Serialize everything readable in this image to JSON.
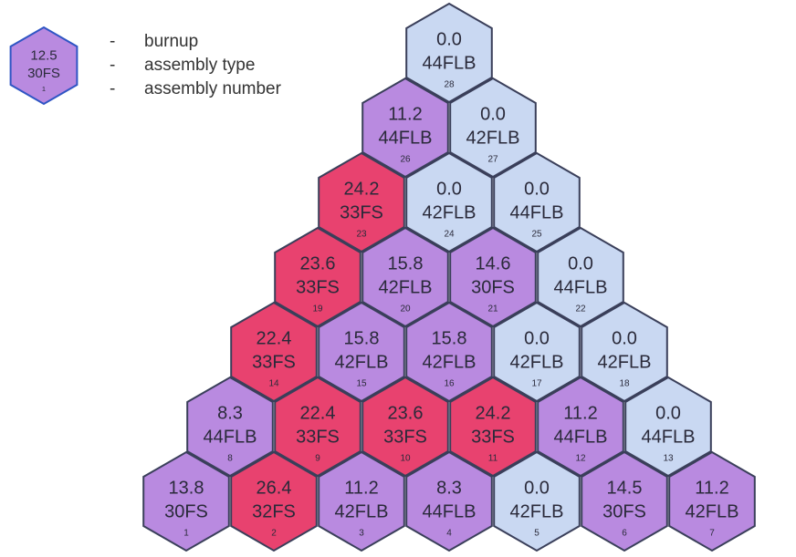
{
  "legend": {
    "burnup": "12.5",
    "type": "30FS",
    "number": 1,
    "color": "#b98ae0",
    "items": [
      {
        "dash": "-",
        "label": "burnup"
      },
      {
        "dash": "-",
        "label": "assembly type"
      },
      {
        "dash": "-",
        "label": "assembly number"
      }
    ]
  },
  "cells": [
    {
      "burnup": "13.8",
      "type": "30FS",
      "number": 1,
      "color": "#b98ae0"
    },
    {
      "burnup": "26.4",
      "type": "32FS",
      "number": 2,
      "color": "#e8426f"
    },
    {
      "burnup": "11.2",
      "type": "42FLB",
      "number": 3,
      "color": "#b98ae0"
    },
    {
      "burnup": "8.3",
      "type": "44FLB",
      "number": 4,
      "color": "#b98ae0"
    },
    {
      "burnup": "0.0",
      "type": "42FLB",
      "number": 5,
      "color": "#c9d8f2"
    },
    {
      "burnup": "14.5",
      "type": "30FS",
      "number": 6,
      "color": "#b98ae0"
    },
    {
      "burnup": "11.2",
      "type": "42FLB",
      "number": 7,
      "color": "#b98ae0"
    },
    {
      "burnup": "8.3",
      "type": "44FLB",
      "number": 8,
      "color": "#b98ae0"
    },
    {
      "burnup": "22.4",
      "type": "33FS",
      "number": 9,
      "color": "#e8426f"
    },
    {
      "burnup": "23.6",
      "type": "33FS",
      "number": 10,
      "color": "#e8426f"
    },
    {
      "burnup": "24.2",
      "type": "33FS",
      "number": 11,
      "color": "#e8426f"
    },
    {
      "burnup": "11.2",
      "type": "44FLB",
      "number": 12,
      "color": "#b98ae0"
    },
    {
      "burnup": "0.0",
      "type": "44FLB",
      "number": 13,
      "color": "#c9d8f2"
    },
    {
      "burnup": "22.4",
      "type": "33FS",
      "number": 14,
      "color": "#e8426f"
    },
    {
      "burnup": "15.8",
      "type": "42FLB",
      "number": 15,
      "color": "#b98ae0"
    },
    {
      "burnup": "15.8",
      "type": "42FLB",
      "number": 16,
      "color": "#b98ae0"
    },
    {
      "burnup": "0.0",
      "type": "42FLB",
      "number": 17,
      "color": "#c9d8f2"
    },
    {
      "burnup": "0.0",
      "type": "42FLB",
      "number": 18,
      "color": "#c9d8f2"
    },
    {
      "burnup": "23.6",
      "type": "33FS",
      "number": 19,
      "color": "#e8426f"
    },
    {
      "burnup": "15.8",
      "type": "42FLB",
      "number": 20,
      "color": "#b98ae0"
    },
    {
      "burnup": "14.6",
      "type": "30FS",
      "number": 21,
      "color": "#b98ae0"
    },
    {
      "burnup": "0.0",
      "type": "44FLB",
      "number": 22,
      "color": "#c9d8f2"
    },
    {
      "burnup": "24.2",
      "type": "33FS",
      "number": 23,
      "color": "#e8426f"
    },
    {
      "burnup": "0.0",
      "type": "42FLB",
      "number": 24,
      "color": "#c9d8f2"
    },
    {
      "burnup": "0.0",
      "type": "44FLB",
      "number": 25,
      "color": "#c9d8f2"
    },
    {
      "burnup": "11.2",
      "type": "44FLB",
      "number": 26,
      "color": "#b98ae0"
    },
    {
      "burnup": "0.0",
      "type": "42FLB",
      "number": 27,
      "color": "#c9d8f2"
    },
    {
      "burnup": "0.0",
      "type": "44FLB",
      "number": 28,
      "color": "#c9d8f2"
    }
  ]
}
